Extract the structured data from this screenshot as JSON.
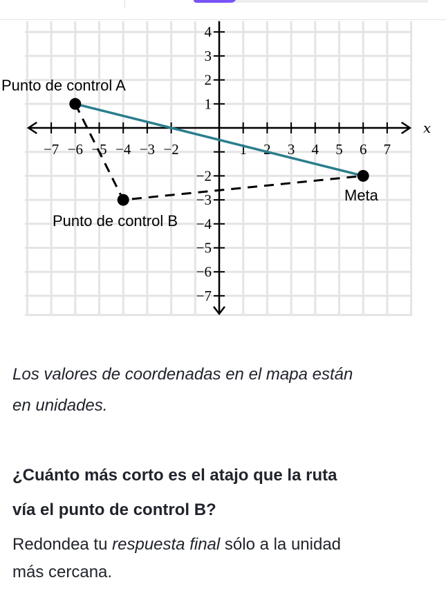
{
  "progress": {
    "percent": 16,
    "color": "#7854f7"
  },
  "graph": {
    "x_axis_label": "x",
    "x_ticks": [
      "−7",
      "−6",
      "−5",
      "−4",
      "−3",
      "−2",
      "1",
      "2",
      "3",
      "4",
      "5",
      "6",
      "7"
    ],
    "x_tick_values": [
      -7,
      -6,
      -5,
      -4,
      -3,
      -2,
      1,
      2,
      3,
      4,
      5,
      6,
      7
    ],
    "y_ticks": [
      "4",
      "3",
      "2",
      "1",
      "−2",
      "−3",
      "−4",
      "−5",
      "−6",
      "−7"
    ],
    "y_tick_values": [
      4,
      3,
      2,
      1,
      -2,
      -3,
      -4,
      -5,
      -6,
      -7
    ],
    "points": {
      "A": {
        "label": "Punto de control A",
        "x": -6,
        "y": 1
      },
      "B": {
        "label": "Punto de control B",
        "x": -4,
        "y": -3
      },
      "goal": {
        "label": "Meta",
        "x": 6,
        "y": -2
      }
    },
    "shortcut_color": "#2b7f8c"
  },
  "text": {
    "note_line1": "Los valores de coordenadas en el mapa están",
    "note_line2": "en unidades.",
    "question_line1": "¿Cuánto más corto es el atajo que la ruta",
    "question_line2": "vía el punto de control B?",
    "instr_pre": "Redondea tu ",
    "instr_italic": "respuesta final",
    "instr_post": " sólo a la unidad",
    "instr_line2": "más cercana."
  }
}
